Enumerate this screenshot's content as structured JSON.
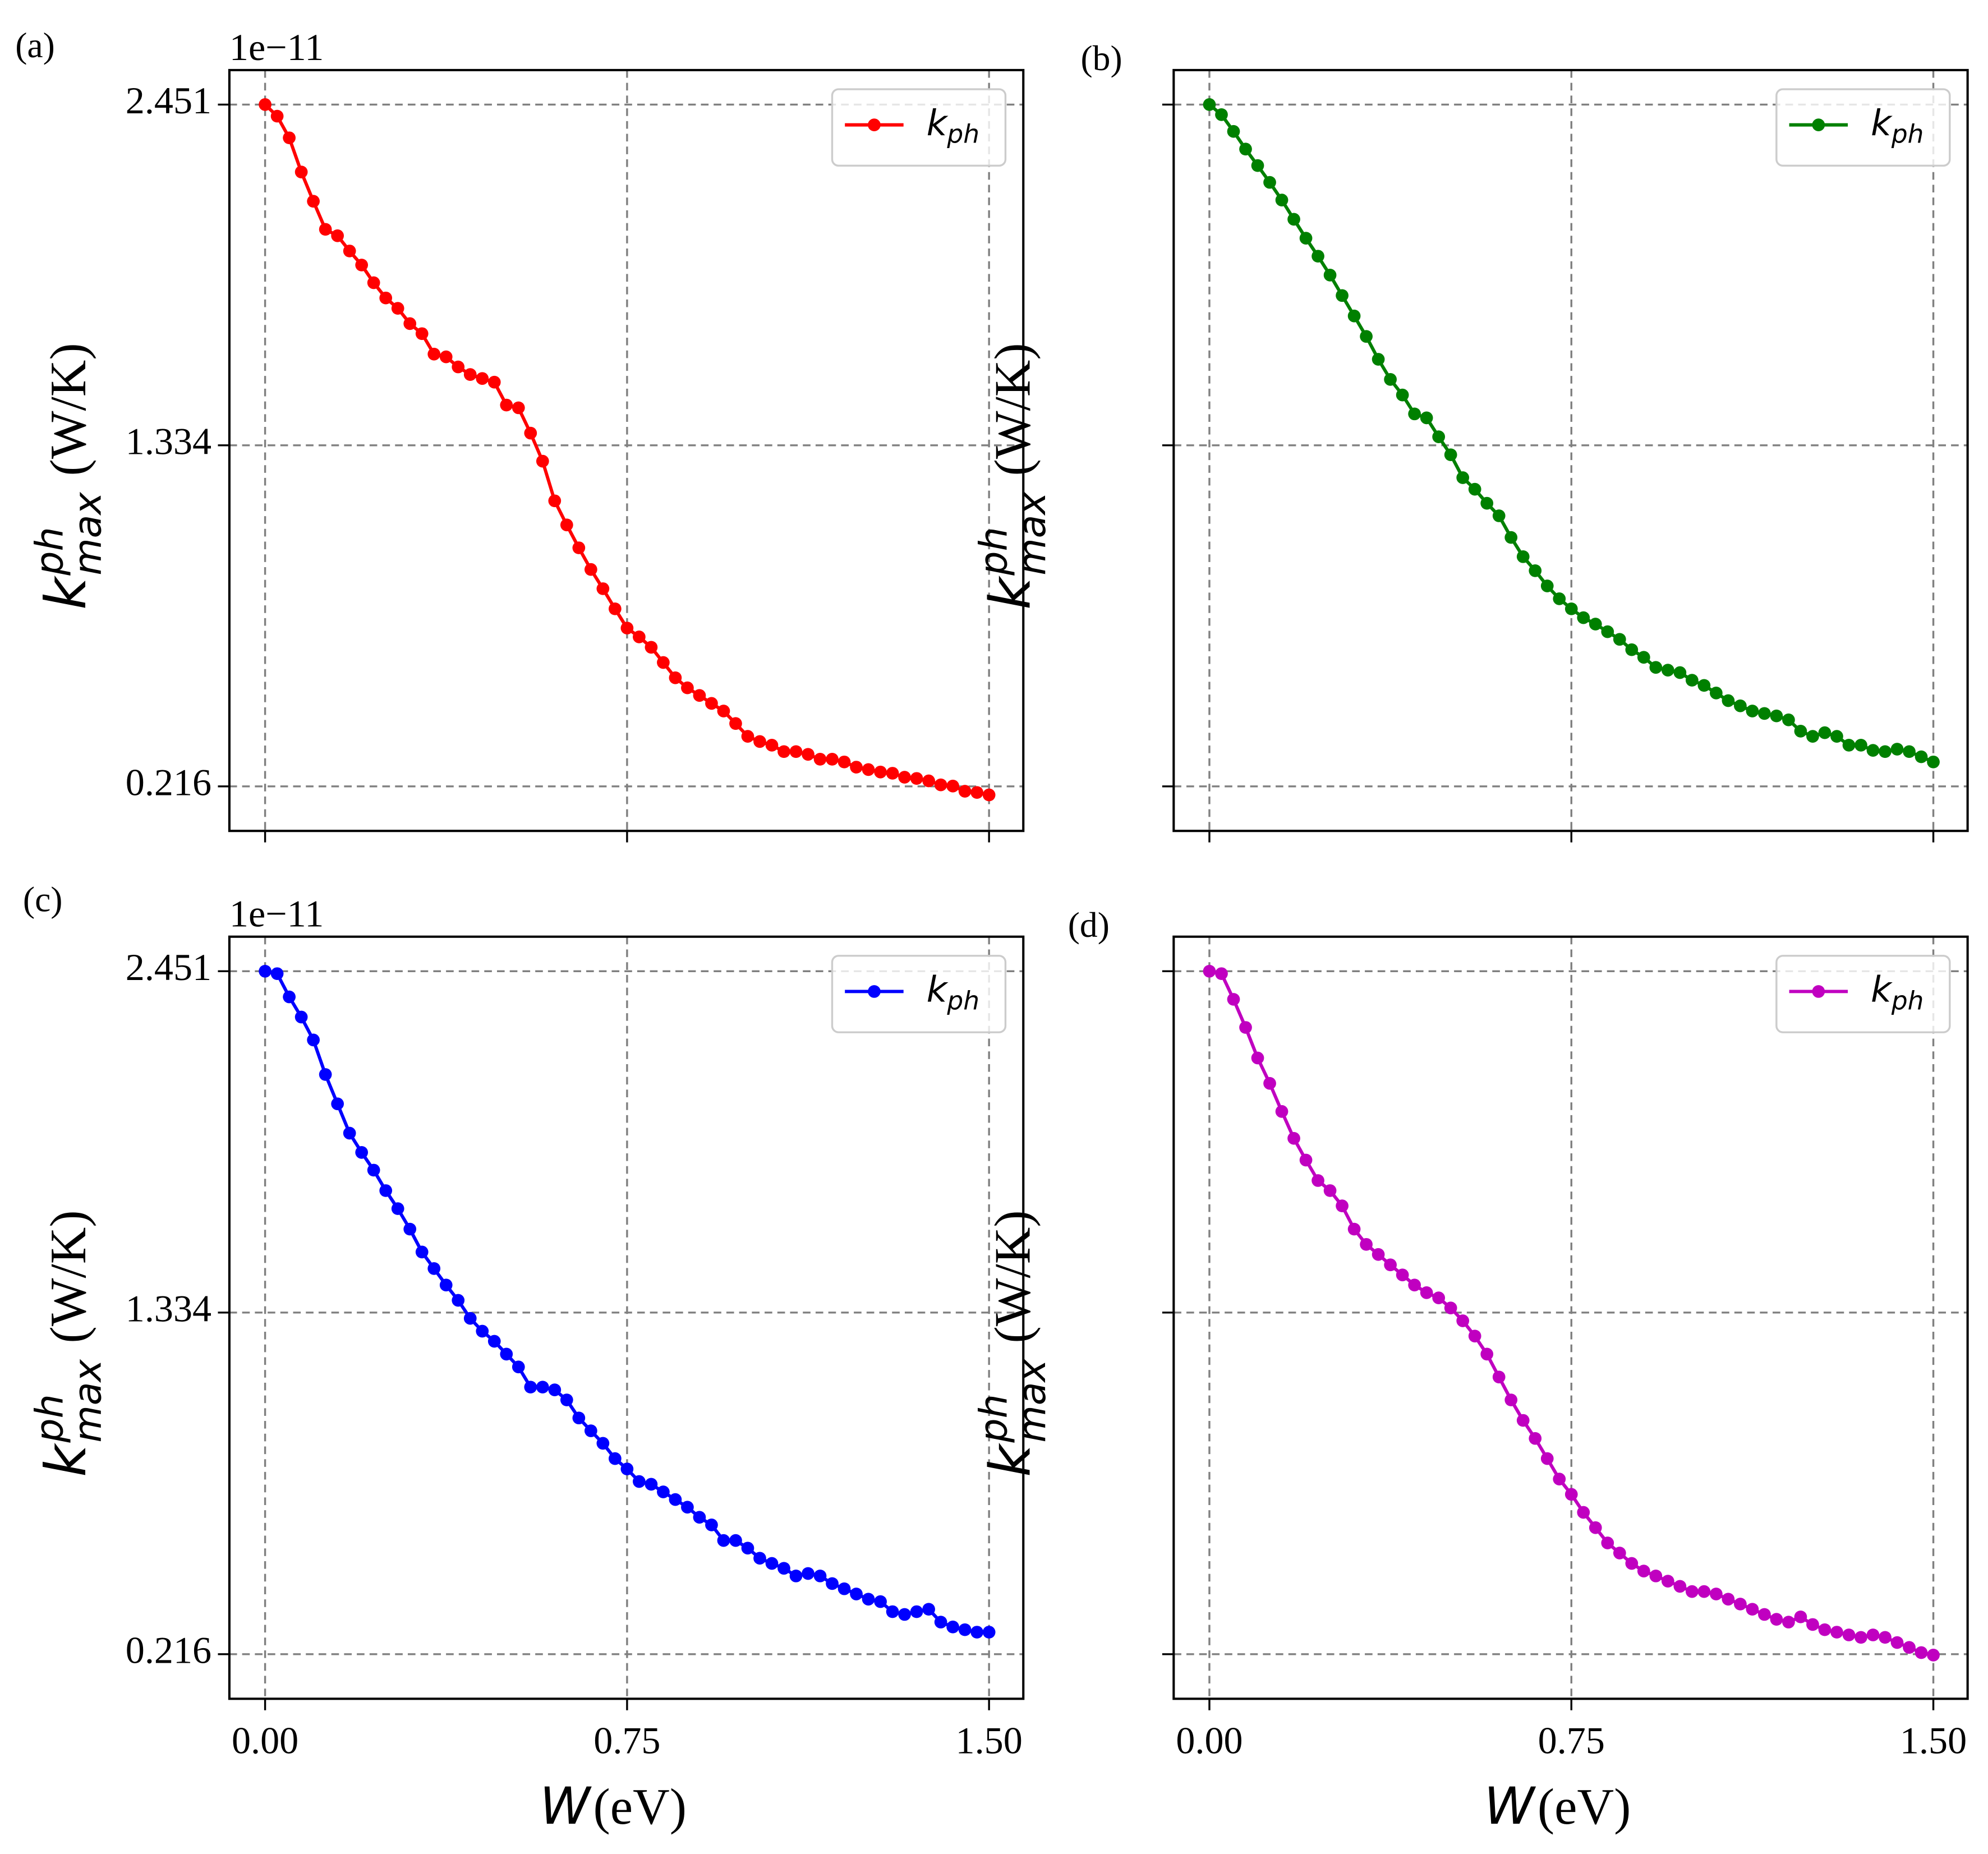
{
  "chart_data": [
    {
      "type": "line",
      "panel_label": "(a)",
      "offset_label": "1e−11",
      "ylabel": {
        "symbol": "k",
        "sup": "ph",
        "sub": "max",
        "unit": "(W/K)"
      },
      "xlim": [
        -0.074,
        1.571
      ],
      "ylim": [
        0.07,
        2.564
      ],
      "xticks": [
        {
          "value": 0,
          "label": "0.00"
        },
        {
          "value": 0.75,
          "label": "0.75"
        },
        {
          "value": 1.5,
          "label": "1.50"
        }
      ],
      "yticks": [
        0.216,
        1.334,
        2.451
      ],
      "grid": true,
      "legend": "upper right",
      "xtick_labels": false,
      "ytick_labels": true,
      "x": [
        0,
        0.025,
        0.05,
        0.075,
        0.1,
        0.125,
        0.15,
        0.175,
        0.2,
        0.225,
        0.25,
        0.275,
        0.3,
        0.325,
        0.35,
        0.375,
        0.4,
        0.425,
        0.45,
        0.475,
        0.5,
        0.525,
        0.55,
        0.575,
        0.6,
        0.625,
        0.65,
        0.675,
        0.7,
        0.725,
        0.75,
        0.775,
        0.8,
        0.825,
        0.85,
        0.875,
        0.9,
        0.925,
        0.95,
        0.975,
        1.0,
        1.025,
        1.05,
        1.075,
        1.1,
        1.125,
        1.15,
        1.175,
        1.2,
        1.225,
        1.25,
        1.275,
        1.3,
        1.325,
        1.35,
        1.375,
        1.4,
        1.425,
        1.45,
        1.475,
        1.5
      ],
      "series": [
        {
          "name": "k_ph",
          "color": "#ff0000",
          "values": [
            2.451,
            2.413,
            2.342,
            2.23,
            2.134,
            2.042,
            2.021,
            1.971,
            1.925,
            1.867,
            1.817,
            1.783,
            1.733,
            1.7,
            1.633,
            1.624,
            1.591,
            1.566,
            1.553,
            1.541,
            1.466,
            1.457,
            1.374,
            1.282,
            1.152,
            1.073,
            0.998,
            0.927,
            0.864,
            0.798,
            0.735,
            0.706,
            0.672,
            0.622,
            0.572,
            0.539,
            0.514,
            0.488,
            0.463,
            0.422,
            0.38,
            0.363,
            0.351,
            0.33,
            0.33,
            0.321,
            0.305,
            0.305,
            0.296,
            0.279,
            0.271,
            0.263,
            0.259,
            0.246,
            0.242,
            0.234,
            0.221,
            0.217,
            0.2,
            0.196,
            0.188
          ]
        }
      ]
    },
    {
      "type": "line",
      "panel_label": "(b)",
      "ylabel": {
        "symbol": "k",
        "sup": "ph",
        "sub": "max",
        "unit": "(W/K)"
      },
      "xlim": [
        -0.074,
        1.571
      ],
      "ylim": [
        0.07,
        2.564
      ],
      "xticks": [
        {
          "value": 0,
          "label": "0.00"
        },
        {
          "value": 0.75,
          "label": "0.75"
        },
        {
          "value": 1.5,
          "label": "1.50"
        }
      ],
      "yticks": [
        0.216,
        1.334,
        2.451
      ],
      "grid": true,
      "legend": "upper right",
      "xtick_labels": false,
      "ytick_labels": false,
      "x": [
        0,
        0.025,
        0.05,
        0.075,
        0.1,
        0.125,
        0.15,
        0.175,
        0.2,
        0.225,
        0.25,
        0.275,
        0.3,
        0.325,
        0.35,
        0.375,
        0.4,
        0.425,
        0.45,
        0.475,
        0.5,
        0.525,
        0.55,
        0.575,
        0.6,
        0.625,
        0.65,
        0.675,
        0.7,
        0.725,
        0.75,
        0.775,
        0.8,
        0.825,
        0.85,
        0.875,
        0.9,
        0.925,
        0.95,
        0.975,
        1.0,
        1.025,
        1.05,
        1.075,
        1.1,
        1.125,
        1.15,
        1.175,
        1.2,
        1.225,
        1.25,
        1.275,
        1.3,
        1.325,
        1.35,
        1.375,
        1.4,
        1.425,
        1.45,
        1.475,
        1.5
      ],
      "series": [
        {
          "name": "k_ph",
          "color": "#008000",
          "values": [
            2.451,
            2.418,
            2.363,
            2.305,
            2.251,
            2.196,
            2.138,
            2.075,
            2.013,
            1.954,
            1.892,
            1.825,
            1.758,
            1.691,
            1.616,
            1.55,
            1.499,
            1.437,
            1.424,
            1.362,
            1.303,
            1.228,
            1.19,
            1.144,
            1.103,
            1.032,
            0.969,
            0.923,
            0.873,
            0.831,
            0.798,
            0.769,
            0.748,
            0.723,
            0.698,
            0.664,
            0.639,
            0.606,
            0.597,
            0.589,
            0.564,
            0.547,
            0.522,
            0.497,
            0.48,
            0.463,
            0.455,
            0.447,
            0.434,
            0.397,
            0.38,
            0.392,
            0.38,
            0.351,
            0.351,
            0.334,
            0.33,
            0.338,
            0.33,
            0.313,
            0.296
          ]
        }
      ]
    },
    {
      "type": "line",
      "panel_label": "(c)",
      "offset_label": "1e−11",
      "ylabel": {
        "symbol": "k",
        "sup": "ph",
        "sub": "max",
        "unit": "(W/K)"
      },
      "xlabel": {
        "symbol": "W",
        "unit": "(eV)"
      },
      "xlim": [
        -0.074,
        1.571
      ],
      "ylim": [
        0.07,
        2.564
      ],
      "xticks": [
        {
          "value": 0,
          "label": "0.00"
        },
        {
          "value": 0.75,
          "label": "0.75"
        },
        {
          "value": 1.5,
          "label": "1.50"
        }
      ],
      "yticks": [
        0.216,
        1.334,
        2.451
      ],
      "grid": true,
      "legend": "upper right",
      "xtick_labels": true,
      "ytick_labels": true,
      "x": [
        0,
        0.025,
        0.05,
        0.075,
        0.1,
        0.125,
        0.15,
        0.175,
        0.2,
        0.225,
        0.25,
        0.275,
        0.3,
        0.325,
        0.35,
        0.375,
        0.4,
        0.425,
        0.45,
        0.475,
        0.5,
        0.525,
        0.55,
        0.575,
        0.6,
        0.625,
        0.65,
        0.675,
        0.7,
        0.725,
        0.75,
        0.775,
        0.8,
        0.825,
        0.85,
        0.875,
        0.9,
        0.925,
        0.95,
        0.975,
        1.0,
        1.025,
        1.05,
        1.075,
        1.1,
        1.125,
        1.15,
        1.175,
        1.2,
        1.225,
        1.25,
        1.275,
        1.3,
        1.325,
        1.35,
        1.375,
        1.4,
        1.425,
        1.45,
        1.475,
        1.5
      ],
      "series": [
        {
          "name": "k_ph",
          "color": "#0000ff",
          "values": [
            2.451,
            2.443,
            2.367,
            2.301,
            2.226,
            2.113,
            2.017,
            1.921,
            1.858,
            1.8,
            1.733,
            1.674,
            1.607,
            1.532,
            1.478,
            1.424,
            1.374,
            1.315,
            1.273,
            1.24,
            1.198,
            1.156,
            1.09,
            1.09,
            1.081,
            1.048,
            0.989,
            0.947,
            0.906,
            0.856,
            0.822,
            0.781,
            0.772,
            0.747,
            0.722,
            0.697,
            0.664,
            0.639,
            0.588,
            0.588,
            0.563,
            0.53,
            0.513,
            0.497,
            0.472,
            0.48,
            0.472,
            0.447,
            0.43,
            0.413,
            0.396,
            0.388,
            0.355,
            0.346,
            0.355,
            0.363,
            0.321,
            0.305,
            0.296,
            0.288,
            0.288
          ]
        }
      ]
    },
    {
      "type": "line",
      "panel_label": "(d)",
      "ylabel": {
        "symbol": "k",
        "sup": "ph",
        "sub": "max",
        "unit": "(W/K)"
      },
      "xlabel": {
        "symbol": "W",
        "unit": "(eV)"
      },
      "xlim": [
        -0.074,
        1.571
      ],
      "ylim": [
        0.07,
        2.564
      ],
      "xticks": [
        {
          "value": 0,
          "label": "0.00"
        },
        {
          "value": 0.75,
          "label": "0.75"
        },
        {
          "value": 1.5,
          "label": "1.50"
        }
      ],
      "yticks": [
        0.216,
        1.334,
        2.451
      ],
      "grid": true,
      "legend": "upper right",
      "xtick_labels": true,
      "ytick_labels": false,
      "x": [
        0,
        0.025,
        0.05,
        0.075,
        0.1,
        0.125,
        0.15,
        0.175,
        0.2,
        0.225,
        0.25,
        0.275,
        0.3,
        0.325,
        0.35,
        0.375,
        0.4,
        0.425,
        0.45,
        0.475,
        0.5,
        0.525,
        0.55,
        0.575,
        0.6,
        0.625,
        0.65,
        0.675,
        0.7,
        0.725,
        0.75,
        0.775,
        0.8,
        0.825,
        0.85,
        0.875,
        0.9,
        0.925,
        0.95,
        0.975,
        1.0,
        1.025,
        1.05,
        1.075,
        1.1,
        1.125,
        1.15,
        1.175,
        1.2,
        1.225,
        1.25,
        1.275,
        1.3,
        1.325,
        1.35,
        1.375,
        1.4,
        1.425,
        1.45,
        1.475,
        1.5
      ],
      "series": [
        {
          "name": "k_ph",
          "color": "#c000c0",
          "values": [
            2.451,
            2.443,
            2.359,
            2.267,
            2.167,
            2.084,
            1.992,
            1.904,
            1.833,
            1.766,
            1.733,
            1.683,
            1.607,
            1.557,
            1.524,
            1.49,
            1.457,
            1.424,
            1.399,
            1.382,
            1.349,
            1.307,
            1.257,
            1.198,
            1.123,
            1.048,
            0.981,
            0.922,
            0.856,
            0.789,
            0.739,
            0.68,
            0.63,
            0.58,
            0.547,
            0.513,
            0.488,
            0.472,
            0.455,
            0.438,
            0.421,
            0.421,
            0.413,
            0.396,
            0.38,
            0.363,
            0.346,
            0.33,
            0.321,
            0.338,
            0.313,
            0.296,
            0.288,
            0.279,
            0.271,
            0.279,
            0.271,
            0.254,
            0.238,
            0.221,
            0.213
          ]
        }
      ]
    }
  ]
}
